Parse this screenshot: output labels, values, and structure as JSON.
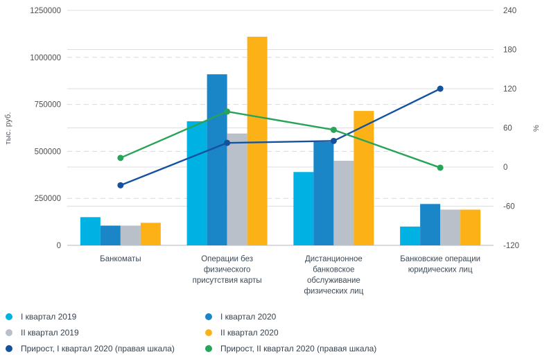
{
  "chart_data": {
    "type": "combo-bar-line",
    "categories": [
      "Банкоматы",
      "Операции без\nфизического\nприсутствия карты",
      "Дистанционное\nбанковское\nобслуживание\nфизических лиц",
      "Банковские операции\nюридических лиц"
    ],
    "bar_series": [
      {
        "name": "I квартал 2019",
        "color": "#00b2e3",
        "values": [
          150000,
          660000,
          390000,
          100000
        ]
      },
      {
        "name": "I квартал 2020",
        "color": "#1a86c8",
        "values": [
          105000,
          910000,
          550000,
          220000
        ]
      },
      {
        "name": "II квартал 2019",
        "color": "#b9c0ca",
        "values": [
          105000,
          595000,
          450000,
          190000
        ]
      },
      {
        "name": "II квартал 2020",
        "color": "#fcb216",
        "values": [
          120000,
          1110000,
          715000,
          190000
        ]
      }
    ],
    "line_series": [
      {
        "name": "Прирост, I квартал 2020 (правая шкала)",
        "color": "#14529e",
        "axis": "right",
        "values": [
          -28,
          37,
          40,
          120
        ]
      },
      {
        "name": "Прирост, II квартал 2020 (правая шкала)",
        "color": "#27a457",
        "axis": "right",
        "values": [
          14,
          85,
          57,
          -1
        ]
      }
    ],
    "left_axis": {
      "title": "тыс. руб.",
      "ticks": [
        0,
        250000,
        500000,
        750000,
        1000000,
        1250000
      ],
      "range": [
        0,
        1250000
      ],
      "gridline_style": "dashed"
    },
    "right_axis": {
      "title": "%",
      "ticks": [
        -120,
        -60,
        0,
        60,
        120,
        180,
        240
      ],
      "range": [
        -120,
        240
      ],
      "gridline_style": "solid"
    },
    "grid": true,
    "legend_position": "bottom"
  },
  "legend": {
    "columns": [
      {
        "items": [
          {
            "label": "I квартал 2019",
            "color": "#00b2e3"
          },
          {
            "label": "II квартал 2019",
            "color": "#b9c0ca"
          },
          {
            "label": "Прирост, I квартал 2020 (правая шкала)",
            "color": "#14529e"
          }
        ]
      },
      {
        "items": [
          {
            "label": "I квартал 2020",
            "color": "#1a86c8"
          },
          {
            "label": "II квартал 2020",
            "color": "#fcb216"
          },
          {
            "label": "Прирост, II квартал 2020 (правая шкала)",
            "color": "#27a457"
          }
        ]
      }
    ]
  }
}
